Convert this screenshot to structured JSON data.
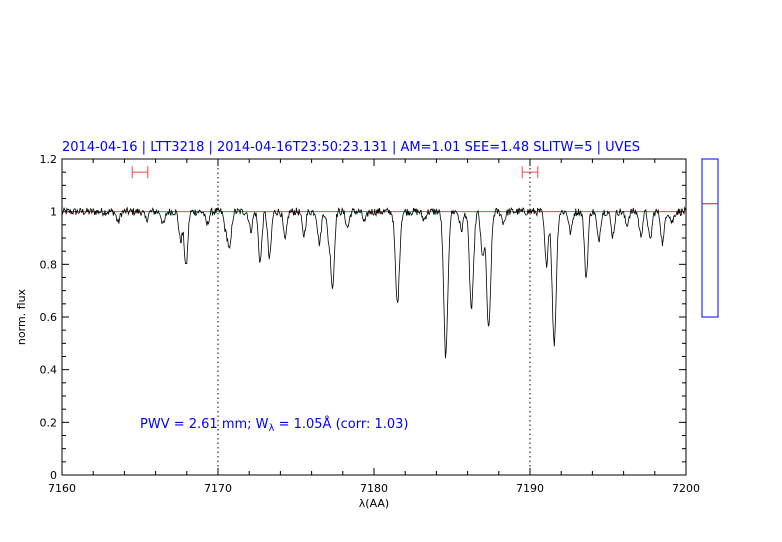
{
  "chart_data": {
    "type": "line",
    "title": "2014-04-16 | LTT3218 | 2014-04-16T23:50:23.131 | AM=1.01 SEE=1.48 SLITW=5 | UVES",
    "xlabel": "λ(AA)",
    "ylabel": "norm. flux",
    "xlim": [
      7160,
      7200
    ],
    "ylim": [
      0,
      1.2
    ],
    "xticks": [
      7160,
      7170,
      7180,
      7190,
      7200
    ],
    "xtick_labels": [
      "7160",
      "7170",
      "7180",
      "7190",
      "7200"
    ],
    "yticks": [
      0,
      0.2,
      0.4,
      0.6,
      0.8,
      1,
      1.2
    ],
    "ytick_labels": [
      "0",
      "0.2",
      "0.4",
      "0.6",
      "0.8",
      "1",
      "1.2"
    ],
    "grid": false,
    "continuum_level": 1.0,
    "dotted_vlines": [
      7170,
      7190
    ],
    "annotation": {
      "prefix": "PWV = 2.61 mm; W",
      "subscript": "λ",
      "suffix": " = 1.05Å (corr: 1.03)"
    },
    "error_bars": [
      {
        "x_low": 7164.5,
        "x_high": 7165.5,
        "y": 1.15
      },
      {
        "x_low": 7189.5,
        "x_high": 7190.5,
        "y": 1.15
      }
    ],
    "absorption_lines": [
      {
        "x": 7163.6,
        "depth": 0.04
      },
      {
        "x": 7165.4,
        "depth": 0.03
      },
      {
        "x": 7166.5,
        "depth": 0.05
      },
      {
        "x": 7167.6,
        "depth": 0.11
      },
      {
        "x": 7167.95,
        "depth": 0.21
      },
      {
        "x": 7169.3,
        "depth": 0.05
      },
      {
        "x": 7170.5,
        "depth": 0.07
      },
      {
        "x": 7170.75,
        "depth": 0.14
      },
      {
        "x": 7172.1,
        "depth": 0.07
      },
      {
        "x": 7172.7,
        "depth": 0.19
      },
      {
        "x": 7173.3,
        "depth": 0.18
      },
      {
        "x": 7174.3,
        "depth": 0.11
      },
      {
        "x": 7175.5,
        "depth": 0.09
      },
      {
        "x": 7176.5,
        "depth": 0.12
      },
      {
        "x": 7177.1,
        "depth": 0.1
      },
      {
        "x": 7177.35,
        "depth": 0.28
      },
      {
        "x": 7178.3,
        "depth": 0.06
      },
      {
        "x": 7179.4,
        "depth": 0.04
      },
      {
        "x": 7181.5,
        "depth": 0.35
      },
      {
        "x": 7183.2,
        "depth": 0.03
      },
      {
        "x": 7184.6,
        "depth": 0.55
      },
      {
        "x": 7185.6,
        "depth": 0.07
      },
      {
        "x": 7186.25,
        "depth": 0.37
      },
      {
        "x": 7186.95,
        "depth": 0.17
      },
      {
        "x": 7187.35,
        "depth": 0.45
      },
      {
        "x": 7188.3,
        "depth": 0.04
      },
      {
        "x": 7191.05,
        "depth": 0.2
      },
      {
        "x": 7191.55,
        "depth": 0.5
      },
      {
        "x": 7192.6,
        "depth": 0.08
      },
      {
        "x": 7193.6,
        "depth": 0.25
      },
      {
        "x": 7194.4,
        "depth": 0.11
      },
      {
        "x": 7195.3,
        "depth": 0.09
      },
      {
        "x": 7196.2,
        "depth": 0.05
      },
      {
        "x": 7197.1,
        "depth": 0.09
      },
      {
        "x": 7197.7,
        "depth": 0.11
      },
      {
        "x": 7198.5,
        "depth": 0.12
      },
      {
        "x": 7199.1,
        "depth": 0.04
      }
    ],
    "side_panel": {
      "ylim": [
        0.6,
        1.2
      ],
      "marker_value": 1.03
    }
  },
  "colors": {
    "title": "#0000ff",
    "annotation": "#0000ff",
    "spectrum": "#000000",
    "continuum": "#cc3333",
    "error_bar": "#ff4444",
    "side_panel_frame": "#0000ff",
    "side_panel_marker": "#aa2222"
  }
}
